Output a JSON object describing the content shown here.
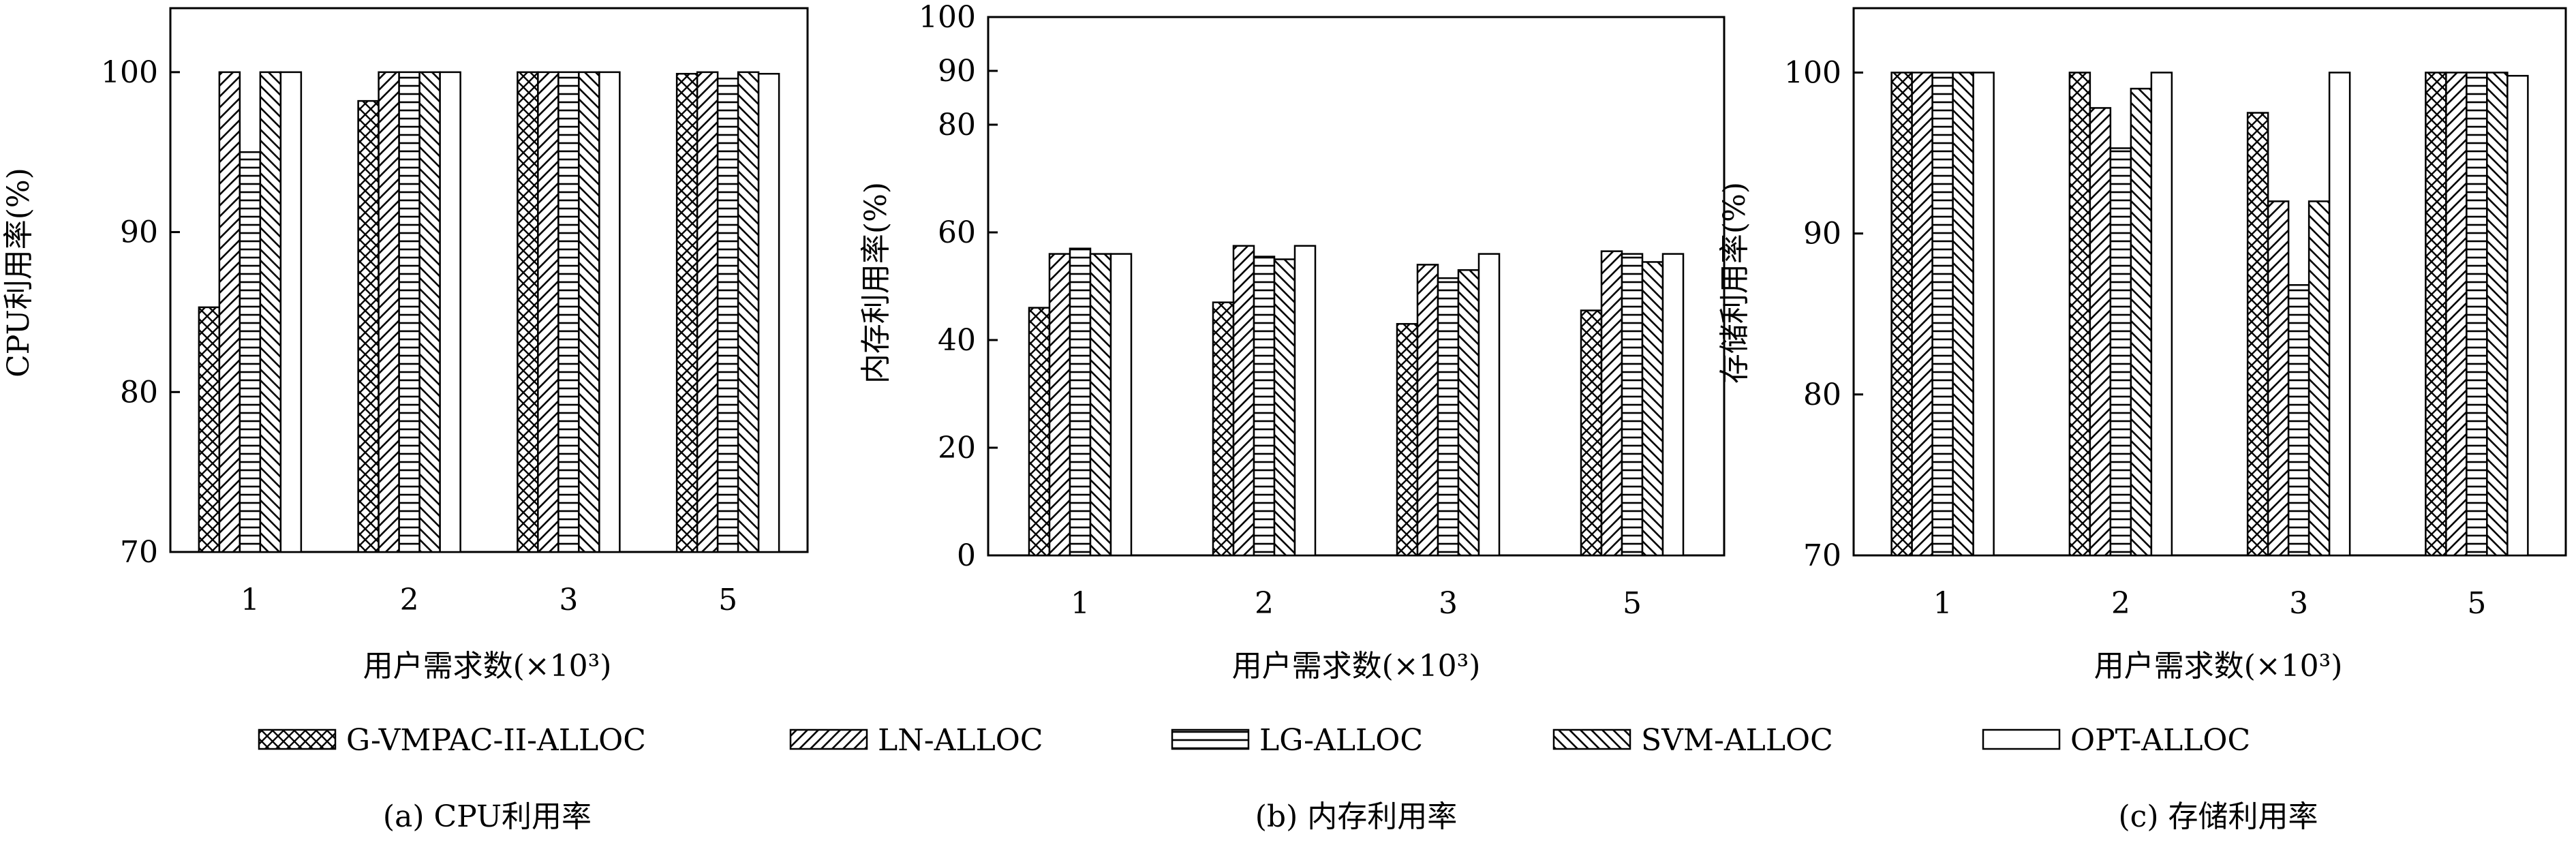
{
  "figure": {
    "legend_position": "bottom",
    "legend": [
      {
        "label": "G-VMPAC-II-ALLOC",
        "pattern": "crosshatch"
      },
      {
        "label": "LN-ALLOC",
        "pattern": "diagonal-right"
      },
      {
        "label": "LG-ALLOC",
        "pattern": "horizontal"
      },
      {
        "label": "SVM-ALLOC",
        "pattern": "diagonal-left"
      },
      {
        "label": "OPT-ALLOC",
        "pattern": "blank"
      }
    ],
    "colors": {
      "line": "#000000",
      "fill": "#ffffff"
    }
  },
  "chart_data": [
    {
      "type": "bar",
      "caption": "(a) CPU利用率",
      "xlabel": "用户需求数(×10³)",
      "ylabel": "CPU利用率(%)",
      "categories": [
        "1",
        "2",
        "3",
        "5"
      ],
      "ylim": [
        70,
        104
      ],
      "yticks": [
        70,
        80,
        90,
        100
      ],
      "grid": false,
      "series": [
        {
          "name": "G-VMPAC-II-ALLOC",
          "values": [
            85.3,
            98.2,
            100,
            99.9
          ]
        },
        {
          "name": "LN-ALLOC",
          "values": [
            100,
            100,
            100,
            100
          ]
        },
        {
          "name": "LG-ALLOC",
          "values": [
            95,
            100,
            100,
            99.6
          ]
        },
        {
          "name": "SVM-ALLOC",
          "values": [
            100,
            100,
            100,
            100
          ]
        },
        {
          "name": "OPT-ALLOC",
          "values": [
            100,
            100,
            100,
            99.9
          ]
        }
      ]
    },
    {
      "type": "bar",
      "caption": "(b) 内存利用率",
      "xlabel": "用户需求数(×10³)",
      "ylabel": "内存利用率(%)",
      "categories": [
        "1",
        "2",
        "3",
        "5"
      ],
      "ylim": [
        0,
        100
      ],
      "yticks": [
        0,
        20,
        40,
        60,
        80,
        90,
        100
      ],
      "grid": false,
      "series": [
        {
          "name": "G-VMPAC-II-ALLOC",
          "values": [
            46,
            47,
            43,
            45.5
          ]
        },
        {
          "name": "LN-ALLOC",
          "values": [
            56,
            57.5,
            54,
            56.5
          ]
        },
        {
          "name": "LG-ALLOC",
          "values": [
            57,
            55.5,
            51.5,
            56
          ]
        },
        {
          "name": "SVM-ALLOC",
          "values": [
            56,
            55,
            53,
            54.5
          ]
        },
        {
          "name": "OPT-ALLOC",
          "values": [
            56,
            57.5,
            56,
            56
          ]
        }
      ]
    },
    {
      "type": "bar",
      "caption": "(c) 存储利用率",
      "xlabel": "用户需求数(×10³)",
      "ylabel": "存储利用率(%)",
      "categories": [
        "1",
        "2",
        "3",
        "5"
      ],
      "ylim": [
        70,
        104
      ],
      "yticks": [
        70,
        80,
        90,
        100
      ],
      "grid": false,
      "series": [
        {
          "name": "G-VMPAC-II-ALLOC",
          "values": [
            100,
            100,
            97.5,
            100
          ]
        },
        {
          "name": "LN-ALLOC",
          "values": [
            100,
            97.8,
            92,
            100
          ]
        },
        {
          "name": "LG-ALLOC",
          "values": [
            100,
            95.3,
            86.8,
            100
          ]
        },
        {
          "name": "SVM-ALLOC",
          "values": [
            100,
            99,
            92,
            100
          ]
        },
        {
          "name": "OPT-ALLOC",
          "values": [
            100,
            100,
            100,
            99.8
          ]
        }
      ]
    }
  ]
}
